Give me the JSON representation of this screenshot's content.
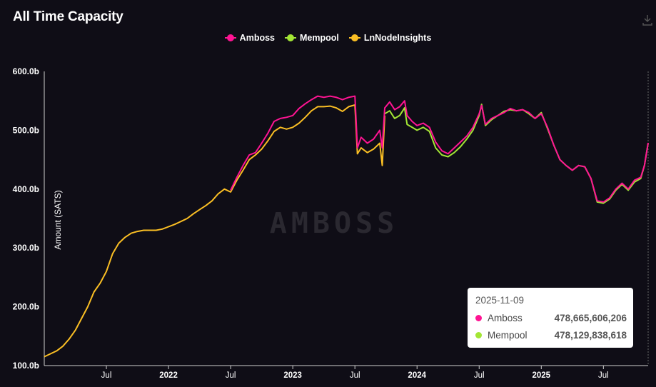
{
  "page": {
    "title": "All Time Capacity",
    "download_icon": "download-icon"
  },
  "watermark": "AMBOSS",
  "tooltip": {
    "date": "2025-11-09",
    "rows": [
      {
        "name": "Amboss",
        "value": "478,665,606,206",
        "color": "#ff1493"
      },
      {
        "name": "Mempool",
        "value": "478,129,838,618",
        "color": "#a3e635"
      }
    ]
  },
  "chart_data": {
    "type": "line",
    "ylabel": "Amount (SATS)",
    "ylim": [
      100,
      600
    ],
    "yticks": [
      "100.0b",
      "200.0b",
      "300.0b",
      "400.0b",
      "500.0b",
      "600.0b"
    ],
    "xticks": [
      {
        "t": 2021.5,
        "label": "Jul"
      },
      {
        "t": 2022.0,
        "label": "2022"
      },
      {
        "t": 2022.5,
        "label": "Jul"
      },
      {
        "t": 2023.0,
        "label": "2023"
      },
      {
        "t": 2023.5,
        "label": "Jul"
      },
      {
        "t": 2024.0,
        "label": "2024"
      },
      {
        "t": 2024.5,
        "label": "Jul"
      },
      {
        "t": 2025.0,
        "label": "2025"
      },
      {
        "t": 2025.5,
        "label": "Jul"
      }
    ],
    "xlim": [
      2021.0,
      2025.86
    ],
    "series": [
      {
        "name": "Amboss",
        "color": "#ff1493",
        "points": [
          [
            2022.5,
            398
          ],
          [
            2022.55,
            420
          ],
          [
            2022.6,
            440
          ],
          [
            2022.65,
            458
          ],
          [
            2022.7,
            462
          ],
          [
            2022.75,
            478
          ],
          [
            2022.8,
            495
          ],
          [
            2022.85,
            515
          ],
          [
            2022.9,
            520
          ],
          [
            2022.95,
            522
          ],
          [
            2023.0,
            525
          ],
          [
            2023.05,
            537
          ],
          [
            2023.1,
            545
          ],
          [
            2023.15,
            552
          ],
          [
            2023.2,
            558
          ],
          [
            2023.25,
            556
          ],
          [
            2023.3,
            558
          ],
          [
            2023.35,
            556
          ],
          [
            2023.4,
            552
          ],
          [
            2023.45,
            556
          ],
          [
            2023.5,
            558
          ],
          [
            2023.52,
            470
          ],
          [
            2023.55,
            488
          ],
          [
            2023.6,
            478
          ],
          [
            2023.65,
            485
          ],
          [
            2023.7,
            500
          ],
          [
            2023.72,
            470
          ],
          [
            2023.74,
            538
          ],
          [
            2023.78,
            548
          ],
          [
            2023.82,
            535
          ],
          [
            2023.86,
            540
          ],
          [
            2023.9,
            550
          ],
          [
            2023.92,
            525
          ],
          [
            2023.96,
            515
          ],
          [
            2024.0,
            508
          ],
          [
            2024.05,
            512
          ],
          [
            2024.1,
            505
          ],
          [
            2024.15,
            480
          ],
          [
            2024.2,
            465
          ],
          [
            2024.25,
            460
          ],
          [
            2024.3,
            470
          ],
          [
            2024.35,
            480
          ],
          [
            2024.4,
            490
          ],
          [
            2024.45,
            505
          ],
          [
            2024.5,
            528
          ],
          [
            2024.52,
            542
          ],
          [
            2024.55,
            510
          ],
          [
            2024.6,
            520
          ],
          [
            2024.65,
            525
          ],
          [
            2024.7,
            530
          ],
          [
            2024.75,
            537
          ],
          [
            2024.8,
            533
          ],
          [
            2024.85,
            535
          ],
          [
            2024.9,
            530
          ],
          [
            2024.95,
            520
          ],
          [
            2025.0,
            528
          ],
          [
            2025.05,
            505
          ],
          [
            2025.1,
            475
          ],
          [
            2025.15,
            450
          ],
          [
            2025.2,
            440
          ],
          [
            2025.25,
            432
          ],
          [
            2025.3,
            440
          ],
          [
            2025.35,
            438
          ],
          [
            2025.4,
            418
          ],
          [
            2025.45,
            380
          ],
          [
            2025.5,
            378
          ],
          [
            2025.55,
            385
          ],
          [
            2025.6,
            400
          ],
          [
            2025.65,
            410
          ],
          [
            2025.7,
            400
          ],
          [
            2025.75,
            415
          ],
          [
            2025.8,
            420
          ],
          [
            2025.83,
            440
          ],
          [
            2025.86,
            478.7
          ]
        ]
      },
      {
        "name": "Mempool",
        "color": "#a3e635",
        "points": [
          [
            2023.74,
            528
          ],
          [
            2023.78,
            533
          ],
          [
            2023.82,
            520
          ],
          [
            2023.86,
            525
          ],
          [
            2023.9,
            538
          ],
          [
            2023.92,
            510
          ],
          [
            2023.96,
            505
          ],
          [
            2024.0,
            500
          ],
          [
            2024.05,
            505
          ],
          [
            2024.1,
            498
          ],
          [
            2024.15,
            470
          ],
          [
            2024.2,
            458
          ],
          [
            2024.25,
            455
          ],
          [
            2024.3,
            462
          ],
          [
            2024.35,
            472
          ],
          [
            2024.4,
            485
          ],
          [
            2024.45,
            500
          ],
          [
            2024.5,
            525
          ],
          [
            2024.52,
            544
          ],
          [
            2024.55,
            508
          ],
          [
            2024.6,
            518
          ],
          [
            2024.65,
            525
          ],
          [
            2024.7,
            532
          ],
          [
            2024.75,
            535
          ],
          [
            2024.8,
            533
          ],
          [
            2024.85,
            535
          ],
          [
            2024.9,
            528
          ],
          [
            2024.95,
            520
          ],
          [
            2025.0,
            530
          ],
          [
            2025.05,
            503
          ],
          [
            2025.1,
            475
          ],
          [
            2025.15,
            450
          ],
          [
            2025.2,
            440
          ],
          [
            2025.25,
            432
          ],
          [
            2025.3,
            440
          ],
          [
            2025.35,
            438
          ],
          [
            2025.4,
            418
          ],
          [
            2025.45,
            378
          ],
          [
            2025.5,
            376
          ],
          [
            2025.55,
            383
          ],
          [
            2025.6,
            398
          ],
          [
            2025.65,
            408
          ],
          [
            2025.7,
            398
          ],
          [
            2025.75,
            412
          ],
          [
            2025.8,
            418
          ],
          [
            2025.83,
            440
          ],
          [
            2025.86,
            478.1
          ]
        ]
      },
      {
        "name": "LnNodeInsights",
        "color": "#fbbf24",
        "points": [
          [
            2021.0,
            115
          ],
          [
            2021.05,
            120
          ],
          [
            2021.1,
            125
          ],
          [
            2021.15,
            133
          ],
          [
            2021.2,
            145
          ],
          [
            2021.25,
            160
          ],
          [
            2021.3,
            180
          ],
          [
            2021.35,
            200
          ],
          [
            2021.4,
            225
          ],
          [
            2021.45,
            240
          ],
          [
            2021.5,
            260
          ],
          [
            2021.55,
            290
          ],
          [
            2021.6,
            308
          ],
          [
            2021.65,
            318
          ],
          [
            2021.7,
            325
          ],
          [
            2021.75,
            328
          ],
          [
            2021.8,
            330
          ],
          [
            2021.85,
            330
          ],
          [
            2021.9,
            330
          ],
          [
            2021.95,
            332
          ],
          [
            2022.0,
            336
          ],
          [
            2022.05,
            340
          ],
          [
            2022.1,
            345
          ],
          [
            2022.15,
            350
          ],
          [
            2022.2,
            358
          ],
          [
            2022.25,
            365
          ],
          [
            2022.3,
            372
          ],
          [
            2022.35,
            380
          ],
          [
            2022.4,
            392
          ],
          [
            2022.45,
            400
          ],
          [
            2022.5,
            395
          ],
          [
            2022.55,
            415
          ],
          [
            2022.6,
            432
          ],
          [
            2022.65,
            450
          ],
          [
            2022.7,
            458
          ],
          [
            2022.75,
            468
          ],
          [
            2022.8,
            482
          ],
          [
            2022.85,
            498
          ],
          [
            2022.9,
            505
          ],
          [
            2022.95,
            502
          ],
          [
            2023.0,
            505
          ],
          [
            2023.05,
            512
          ],
          [
            2023.1,
            522
          ],
          [
            2023.15,
            533
          ],
          [
            2023.2,
            540
          ],
          [
            2023.25,
            540
          ],
          [
            2023.3,
            541
          ],
          [
            2023.35,
            538
          ],
          [
            2023.4,
            532
          ],
          [
            2023.45,
            540
          ],
          [
            2023.5,
            543
          ],
          [
            2023.52,
            460
          ],
          [
            2023.55,
            470
          ],
          [
            2023.6,
            462
          ],
          [
            2023.65,
            468
          ],
          [
            2023.7,
            478
          ],
          [
            2023.72,
            440
          ],
          [
            2023.74,
            525
          ]
        ]
      }
    ]
  }
}
